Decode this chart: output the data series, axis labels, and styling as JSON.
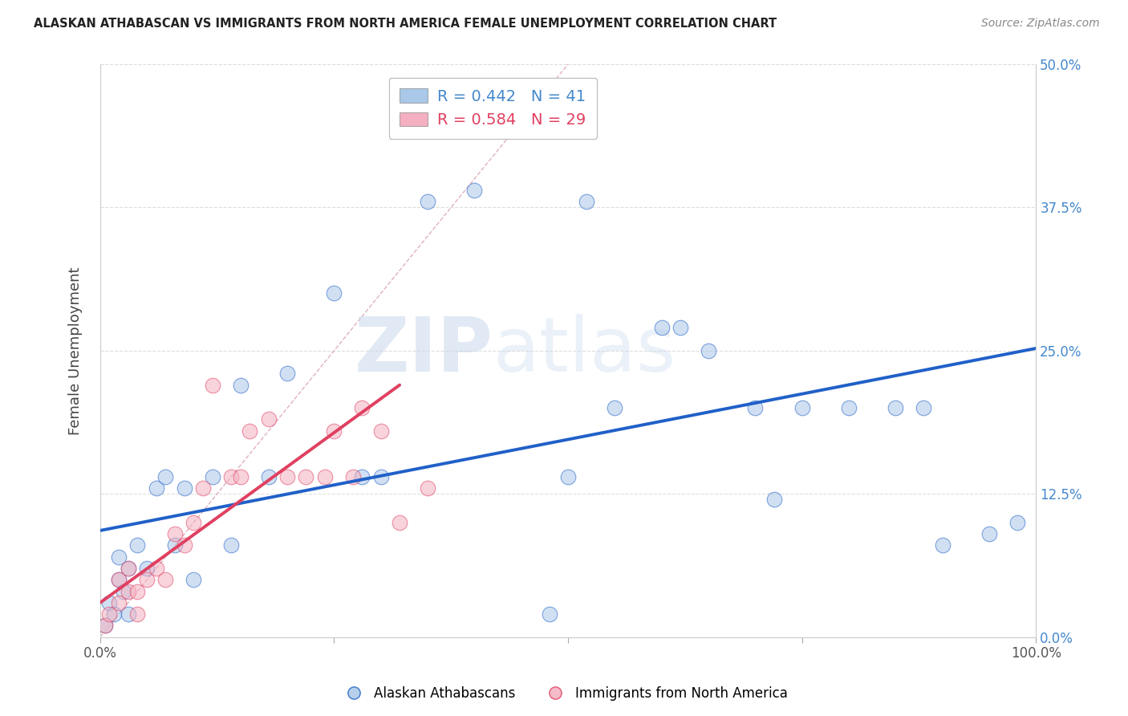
{
  "title": "ALASKAN ATHABASCAN VS IMMIGRANTS FROM NORTH AMERICA FEMALE UNEMPLOYMENT CORRELATION CHART",
  "source": "Source: ZipAtlas.com",
  "ylabel": "Female Unemployment",
  "xlim": [
    0,
    1.0
  ],
  "ylim": [
    0,
    0.5
  ],
  "yticks": [
    0,
    0.125,
    0.25,
    0.375,
    0.5
  ],
  "ytick_labels": [
    "",
    "",
    "",
    "",
    ""
  ],
  "ytick_labels_right": [
    "0.0%",
    "12.5%",
    "25.0%",
    "37.5%",
    "50.0%"
  ],
  "xtick_positions": [
    0.0,
    0.25,
    0.5,
    0.75,
    1.0
  ],
  "xtick_labels": [
    "0.0%",
    "",
    "",
    "",
    "100.0%"
  ],
  "bg_color": "#ffffff",
  "grid_color": "#dddddd",
  "blue_color": "#aac8e8",
  "pink_color": "#f4b0c0",
  "blue_line_color": "#2060c8",
  "pink_line_color": "#e04060",
  "diagonal_color": "#e0b0c0",
  "blue_scatter_x": [
    0.005,
    0.01,
    0.015,
    0.02,
    0.02,
    0.025,
    0.03,
    0.03,
    0.04,
    0.05,
    0.06,
    0.07,
    0.08,
    0.09,
    0.1,
    0.12,
    0.14,
    0.15,
    0.18,
    0.2,
    0.25,
    0.28,
    0.3,
    0.35,
    0.4,
    0.5,
    0.55,
    0.6,
    0.62,
    0.65,
    0.7,
    0.72,
    0.75,
    0.8,
    0.85,
    0.88,
    0.9,
    0.95,
    0.98,
    0.48,
    0.52
  ],
  "blue_scatter_y": [
    0.01,
    0.03,
    0.02,
    0.05,
    0.07,
    0.04,
    0.02,
    0.06,
    0.08,
    0.06,
    0.13,
    0.14,
    0.08,
    0.13,
    0.05,
    0.14,
    0.08,
    0.22,
    0.14,
    0.23,
    0.3,
    0.14,
    0.14,
    0.38,
    0.39,
    0.14,
    0.2,
    0.27,
    0.27,
    0.25,
    0.2,
    0.12,
    0.2,
    0.2,
    0.2,
    0.2,
    0.08,
    0.09,
    0.1,
    0.02,
    0.38
  ],
  "pink_scatter_x": [
    0.005,
    0.01,
    0.02,
    0.02,
    0.03,
    0.03,
    0.04,
    0.04,
    0.05,
    0.06,
    0.07,
    0.08,
    0.09,
    0.1,
    0.11,
    0.12,
    0.14,
    0.15,
    0.16,
    0.18,
    0.2,
    0.22,
    0.24,
    0.25,
    0.27,
    0.28,
    0.3,
    0.32,
    0.35
  ],
  "pink_scatter_y": [
    0.01,
    0.02,
    0.03,
    0.05,
    0.04,
    0.06,
    0.02,
    0.04,
    0.05,
    0.06,
    0.05,
    0.09,
    0.08,
    0.1,
    0.13,
    0.22,
    0.14,
    0.14,
    0.18,
    0.19,
    0.14,
    0.14,
    0.14,
    0.18,
    0.14,
    0.2,
    0.18,
    0.1,
    0.13
  ],
  "blue_trend_x": [
    0.0,
    1.0
  ],
  "blue_trend_y": [
    0.093,
    0.252
  ],
  "pink_trend_x": [
    0.0,
    0.32
  ],
  "pink_trend_y": [
    0.03,
    0.22
  ],
  "legend_border_color": "#bbbbbb",
  "legend_blue_label": "R = 0.442   N = 41",
  "legend_pink_label": "R = 0.584   N = 29",
  "label_blue": "Alaskan Athabascans",
  "label_pink": "Immigrants from North America",
  "watermark_zip": "ZIP",
  "watermark_atlas": "atlas"
}
